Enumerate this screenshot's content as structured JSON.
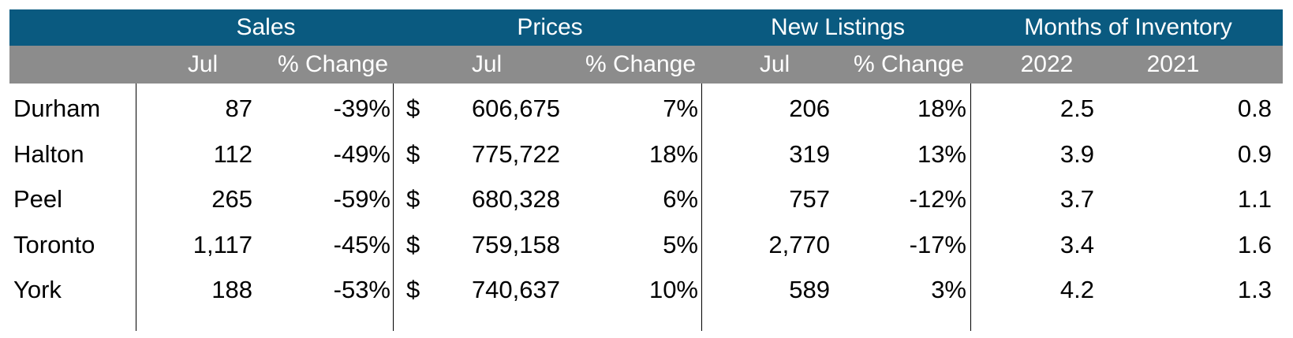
{
  "groups": {
    "sales": "Sales",
    "prices": "Prices",
    "new_listings": "New Listings",
    "moi": "Months of Inventory"
  },
  "subheaders": {
    "sales_month": "Jul",
    "sales_change": "% Change",
    "prices_month": "Jul",
    "prices_change": "% Change",
    "listings_month": "Jul",
    "listings_change": "% Change",
    "moi_year1": "2022",
    "moi_year2": "2021"
  },
  "rows": [
    {
      "region": "Durham",
      "sales": "87",
      "sales_change": "-39%",
      "currency": "$",
      "price": "606,675",
      "price_change": "7%",
      "listings": "206",
      "listings_change": "18%",
      "moi_2022": "2.5",
      "moi_2021": "0.8"
    },
    {
      "region": "Halton",
      "sales": "112",
      "sales_change": "-49%",
      "currency": "$",
      "price": "775,722",
      "price_change": "18%",
      "listings": "319",
      "listings_change": "13%",
      "moi_2022": "3.9",
      "moi_2021": "0.9"
    },
    {
      "region": "Peel",
      "sales": "265",
      "sales_change": "-59%",
      "currency": "$",
      "price": "680,328",
      "price_change": "6%",
      "listings": "757",
      "listings_change": "-12%",
      "moi_2022": "3.7",
      "moi_2021": "1.1"
    },
    {
      "region": "Toronto",
      "sales": "1,117",
      "sales_change": "-45%",
      "currency": "$",
      "price": "759,158",
      "price_change": "5%",
      "listings": "2,770",
      "listings_change": "-17%",
      "moi_2022": "3.4",
      "moi_2021": "1.6"
    },
    {
      "region": "York",
      "sales": "188",
      "sales_change": "-53%",
      "currency": "$",
      "price": "740,637",
      "price_change": "10%",
      "listings": "589",
      "listings_change": "3%",
      "moi_2022": "4.2",
      "moi_2021": "1.3"
    }
  ],
  "colors": {
    "header_primary": "#0a5a80",
    "header_secondary": "#8c8c8c"
  }
}
